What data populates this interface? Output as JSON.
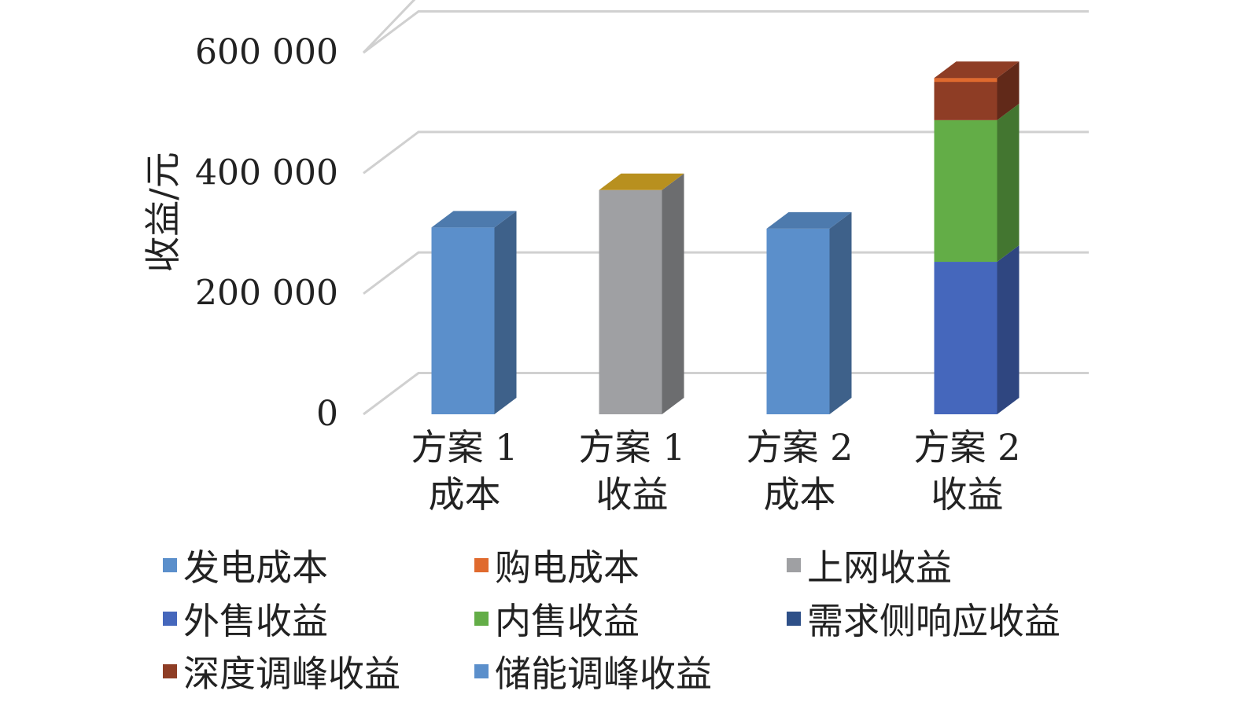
{
  "chart_data": {
    "type": "bar",
    "stacked": true,
    "style": "3d-column",
    "title": "",
    "xlabel": "",
    "ylabel": "收益/元",
    "ylim": [
      0,
      600000
    ],
    "yticks": [
      0,
      200000,
      400000,
      600000
    ],
    "ytick_labels": [
      "0",
      "200 000",
      "400 000",
      "600 000"
    ],
    "grid": true,
    "legend_position": "bottom",
    "categories": [
      [
        "方案 1",
        "成本"
      ],
      [
        "方案 1",
        "收益"
      ],
      [
        "方案 2",
        "成本"
      ],
      [
        "方案 2",
        "收益"
      ]
    ],
    "series": [
      {
        "name": "发电成本",
        "color": "#5B8FCB",
        "values": [
          310000,
          0,
          308000,
          0
        ]
      },
      {
        "name": "购电成本",
        "color": "#E06A2E",
        "values": [
          0,
          0,
          0,
          0
        ]
      },
      {
        "name": "上网收益",
        "color": "#9FA0A3",
        "values": [
          0,
          372000,
          0,
          0
        ]
      },
      {
        "name": "外售收益",
        "color": "#4567BC",
        "values": [
          0,
          0,
          0,
          253000
        ]
      },
      {
        "name": "内售收益",
        "color": "#63AD47",
        "values": [
          0,
          0,
          0,
          235000
        ]
      },
      {
        "name": "需求侧响应收益",
        "color": "#2E5088",
        "values": [
          0,
          0,
          0,
          0
        ]
      },
      {
        "name": "深度调峰收益",
        "color": "#8E3D25",
        "values": [
          0,
          0,
          0,
          70000
        ]
      },
      {
        "name": "储能调峰收益",
        "color": "#5B8FCB",
        "values": [
          0,
          0,
          0,
          0
        ]
      }
    ],
    "extra_top_caps": [
      {
        "category_index": 1,
        "color": "#B8901F"
      },
      {
        "category_index": 3,
        "color": "#E06A2E"
      }
    ]
  }
}
